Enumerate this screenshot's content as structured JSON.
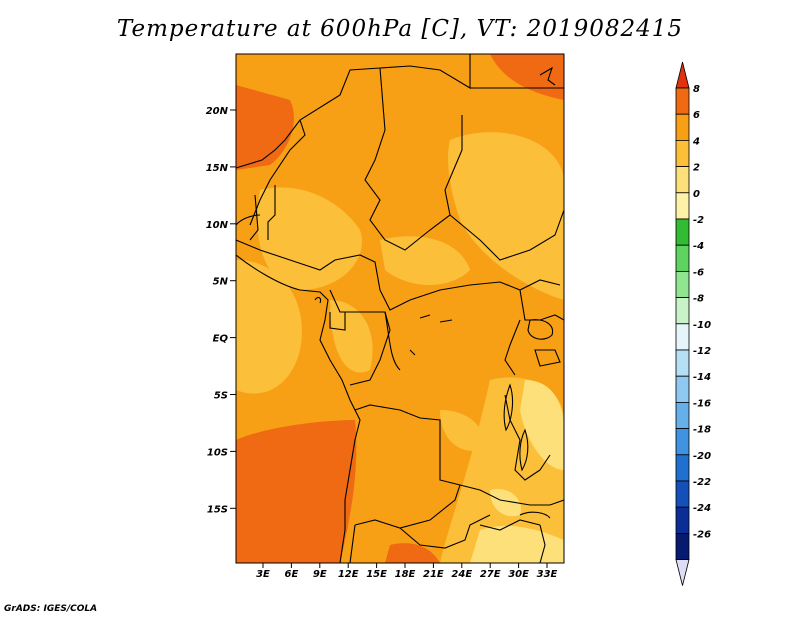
{
  "title": "Temperature at 600hPa [C], VT: 2019082415",
  "credit": "GrADS: IGES/COLA",
  "colors": {
    "deep_orange": "#f06a14",
    "orange": "#f7a015",
    "light_orange": "#fbbf3a",
    "pale": "#fde07a",
    "border": "#000000"
  },
  "lat_labels": [
    "20N",
    "15N",
    "10N",
    "5N",
    "EQ",
    "5S",
    "10S",
    "15S"
  ],
  "lon_labels": [
    "3E",
    "6E",
    "9E",
    "12E",
    "15E",
    "18E",
    "21E",
    "24E",
    "27E",
    "30E",
    "33E"
  ],
  "colorbar": {
    "labels": [
      "8",
      "6",
      "4",
      "2",
      "0",
      "-2",
      "-4",
      "-6",
      "-8",
      "-10",
      "-12",
      "-14",
      "-16",
      "-18",
      "-20",
      "-22",
      "-24",
      "-26"
    ],
    "colors": [
      "#e0320c",
      "#f06a14",
      "#f7a015",
      "#fbbf3a",
      "#fde07a",
      "#fef2a8",
      "#33bb33",
      "#5fd35f",
      "#8fe68f",
      "#c8f2c8",
      "#e6f5fa",
      "#b5dff5",
      "#8fc8f0",
      "#66b0ea",
      "#4093e0",
      "#2070d0",
      "#1450b8",
      "#0a2e96",
      "#061a70",
      "#ddddf5"
    ]
  }
}
